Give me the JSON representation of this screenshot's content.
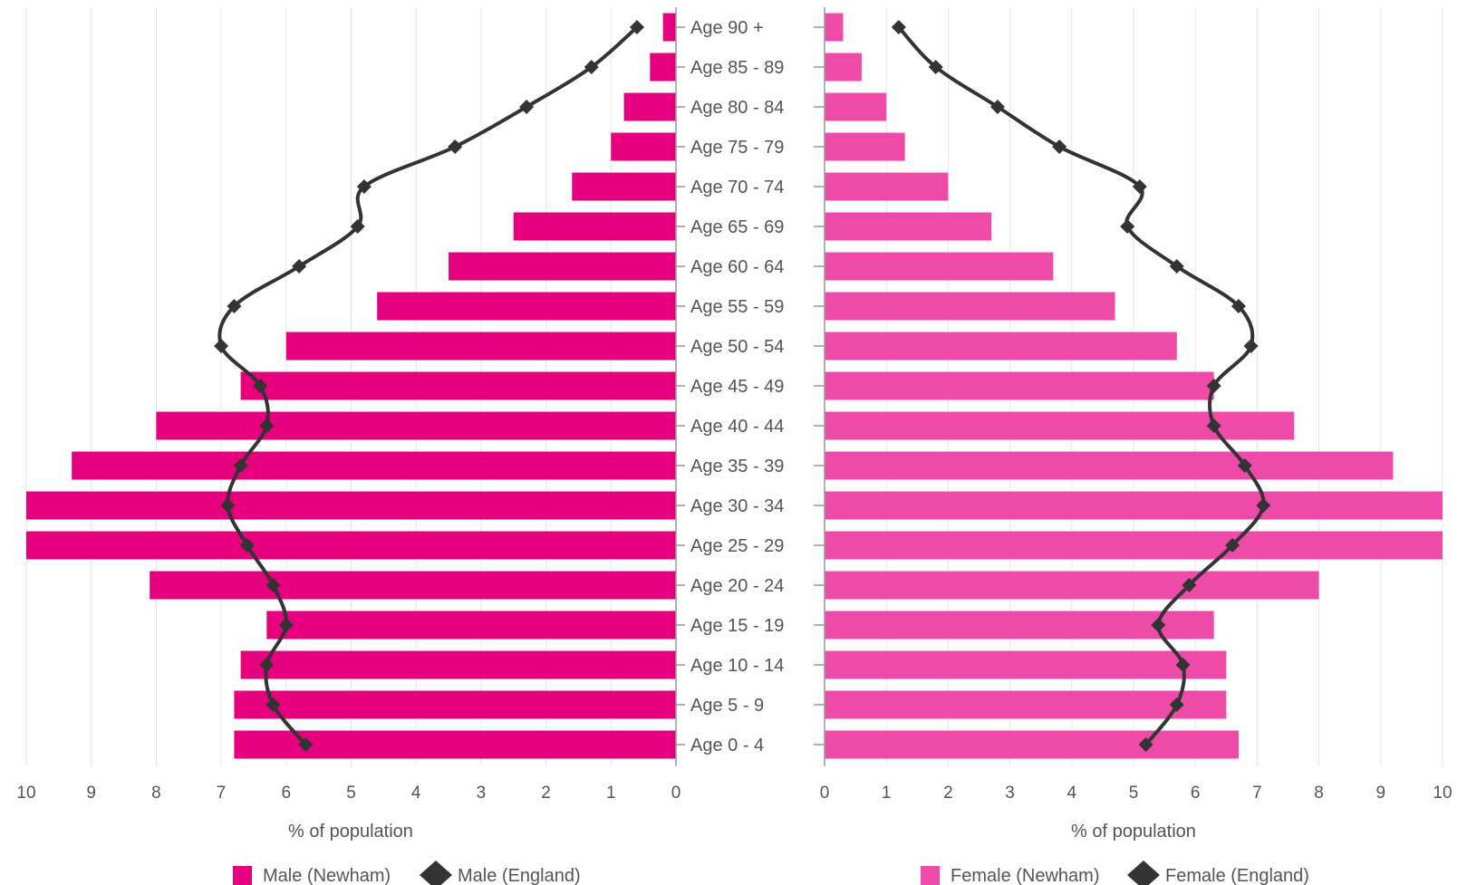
{
  "chart_data": {
    "type": "bar",
    "orientation": "horizontal-population-pyramid",
    "categories": [
      "Age 0 - 4",
      "Age 5 - 9",
      "Age 10 - 14",
      "Age 15 - 19",
      "Age 20 - 24",
      "Age 25 - 29",
      "Age 30 - 34",
      "Age 35 - 39",
      "Age 40 - 44",
      "Age 45 - 49",
      "Age 50 - 54",
      "Age 55 - 59",
      "Age 60 - 64",
      "Age 65 - 69",
      "Age 70 - 74",
      "Age 75 - 79",
      "Age 80 - 84",
      "Age 85 - 89",
      "Age 90 +"
    ],
    "panels": [
      {
        "side": "left",
        "xlabel": "% of population",
        "xlim": [
          0,
          10
        ],
        "ticks": [
          "10",
          "9",
          "8",
          "7",
          "6",
          "5",
          "4",
          "3",
          "2",
          "1",
          "0"
        ],
        "bar_series": {
          "name": "Male (Newham)",
          "color": "#e6007e",
          "values": [
            6.8,
            6.8,
            6.7,
            6.3,
            8.1,
            10.0,
            10.0,
            9.3,
            8.0,
            6.7,
            6.0,
            4.6,
            3.5,
            2.5,
            1.6,
            1.0,
            0.8,
            0.4,
            0.2
          ]
        },
        "line_series": {
          "name": "Male (England)",
          "color": "#333333",
          "values": [
            5.7,
            6.2,
            6.3,
            6.0,
            6.2,
            6.6,
            6.9,
            6.7,
            6.3,
            6.4,
            7.0,
            6.8,
            5.8,
            4.9,
            4.8,
            3.4,
            2.3,
            1.3,
            0.6
          ]
        }
      },
      {
        "side": "right",
        "xlabel": "% of population",
        "xlim": [
          0,
          10
        ],
        "ticks": [
          "0",
          "1",
          "2",
          "3",
          "4",
          "5",
          "6",
          "7",
          "8",
          "9",
          "10"
        ],
        "bar_series": {
          "name": "Female (Newham)",
          "color": "#ee4aa8",
          "values": [
            6.7,
            6.5,
            6.5,
            6.3,
            8.0,
            10.0,
            10.0,
            9.2,
            7.6,
            6.3,
            5.7,
            4.7,
            3.7,
            2.7,
            2.0,
            1.3,
            1.0,
            0.6,
            0.3
          ]
        },
        "line_series": {
          "name": "Female (England)",
          "color": "#333333",
          "values": [
            5.2,
            5.7,
            5.8,
            5.4,
            5.9,
            6.6,
            7.1,
            6.8,
            6.3,
            6.3,
            6.9,
            6.7,
            5.7,
            4.9,
            5.1,
            3.8,
            2.8,
            1.8,
            1.2
          ]
        }
      }
    ],
    "grid": true,
    "legend_position": "bottom"
  }
}
